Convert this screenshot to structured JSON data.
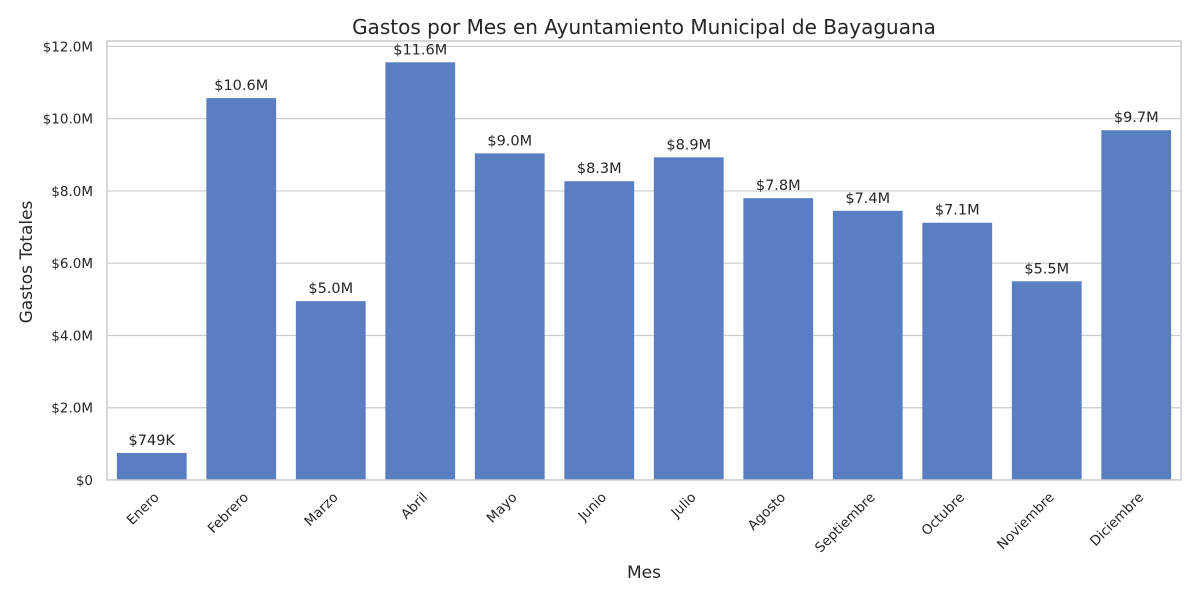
{
  "chart_data": {
    "type": "bar",
    "title": "Gastos por Mes en Ayuntamiento Municipal de Bayaguana",
    "xlabel": "Mes",
    "ylabel": "Gastos Totales",
    "categories": [
      "Enero",
      "Febrero",
      "Marzo",
      "Abril",
      "Mayo",
      "Junio",
      "Julio",
      "Agosto",
      "Septiembre",
      "Octubre",
      "Noviembre",
      "Diciembre"
    ],
    "values": [
      749000,
      10570000,
      4950000,
      11560000,
      9040000,
      8270000,
      8930000,
      7800000,
      7450000,
      7120000,
      5500000,
      9680000
    ],
    "value_labels": [
      "$749K",
      "$10.6M",
      "$5.0M",
      "$11.6M",
      "$9.0M",
      "$8.3M",
      "$8.9M",
      "$7.8M",
      "$7.4M",
      "$7.1M",
      "$5.5M",
      "$9.7M"
    ],
    "ylim": [
      0,
      12150000
    ],
    "yticks": [
      0,
      2000000,
      4000000,
      6000000,
      8000000,
      10000000,
      12000000
    ],
    "ytick_labels": [
      "$0",
      "$2.0M",
      "$4.0M",
      "$6.0M",
      "$8.0M",
      "$10.0M",
      "$12.0M"
    ],
    "grid": true,
    "bar_color": "#5a7ec2",
    "grid_color": "#cccccc",
    "x_tick_rotation": 45
  }
}
